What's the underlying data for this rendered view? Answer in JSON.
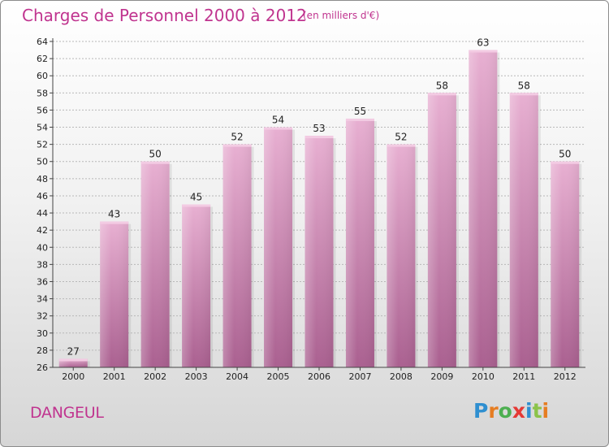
{
  "chart_data": {
    "type": "bar",
    "title": "Charges de Personnel 2000 à 2012",
    "subtitle": "(en milliers d'€)",
    "categories": [
      "2000",
      "2001",
      "2002",
      "2003",
      "2004",
      "2005",
      "2006",
      "2007",
      "2008",
      "2009",
      "2010",
      "2011",
      "2012"
    ],
    "values": [
      27,
      43,
      50,
      45,
      52,
      54,
      53,
      55,
      52,
      58,
      63,
      58,
      50
    ],
    "ylim": [
      26,
      64
    ],
    "yticks": [
      26,
      28,
      30,
      32,
      34,
      36,
      38,
      40,
      42,
      44,
      46,
      48,
      50,
      52,
      54,
      56,
      58,
      60,
      62,
      64
    ],
    "grid": true,
    "colors": {
      "bar": "#c27aa6",
      "bar_top": "#e8b0d2",
      "bar_bottom": "#aa6090",
      "text_accent": "#c0348f",
      "grid": "#b8b8b8"
    }
  },
  "commune": "DANGEUL",
  "logo": {
    "letters": [
      "P",
      "r",
      "o",
      "x",
      "i",
      "t",
      "i"
    ],
    "colors": [
      "#2f8fd0",
      "#e67d22",
      "#4caf50",
      "#e53935",
      "#2f8fd0",
      "#8bc34a",
      "#e67d22"
    ]
  }
}
